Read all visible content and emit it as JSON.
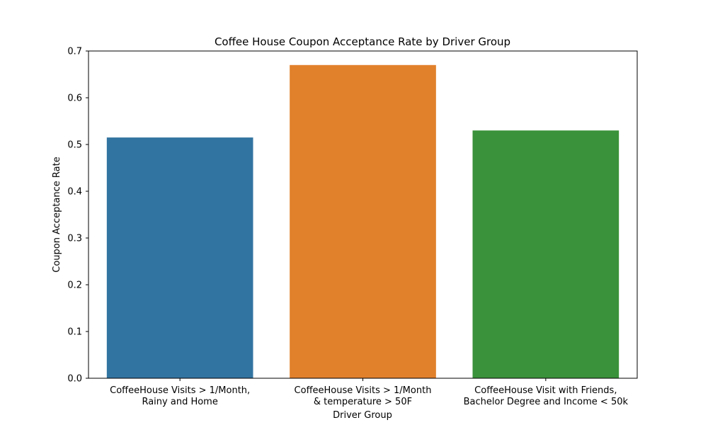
{
  "chart_data": {
    "type": "bar",
    "title": "Coffee House Coupon Acceptance Rate by Driver Group",
    "xlabel": "Driver Group",
    "ylabel": "Coupon Acceptance Rate",
    "categories": [
      [
        "CoffeeHouse Visits > 1/Month,",
        "Rainy and Home"
      ],
      [
        "CoffeeHouse Visits > 1/Month",
        "& temperature > 50F"
      ],
      [
        "CoffeeHouse Visit with Friends,",
        "Bachelor Degree and Income < 50k"
      ]
    ],
    "values": [
      0.515,
      0.67,
      0.53
    ],
    "colors": [
      "#3274a1",
      "#e1812c",
      "#3a923a"
    ],
    "ylim": [
      0,
      0.7
    ],
    "yticks": [
      "0.0",
      "0.1",
      "0.2",
      "0.3",
      "0.4",
      "0.5",
      "0.6",
      "0.7"
    ],
    "grid": false,
    "legend": "none"
  }
}
